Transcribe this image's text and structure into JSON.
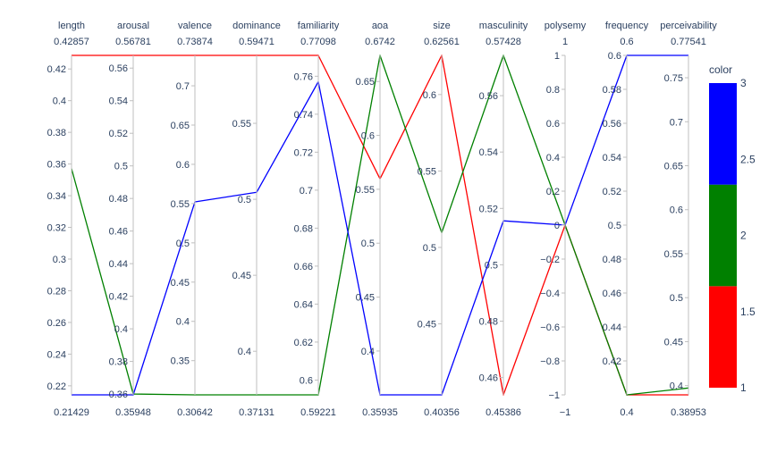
{
  "chart_data": {
    "type": "parallel_coordinates",
    "dimensions": [
      {
        "label": "length",
        "range": [
          0.21429,
          0.42857
        ],
        "range_labels": [
          "0.21429",
          "0.42857"
        ],
        "ticks": [
          0.22,
          0.24,
          0.26,
          0.28,
          0.3,
          0.32,
          0.34,
          0.36,
          0.38,
          0.4,
          0.42
        ],
        "tick_labels": [
          "0.22",
          "0.24",
          "0.26",
          "0.28",
          "0.3",
          "0.32",
          "0.34",
          "0.36",
          "0.38",
          "0.4",
          "0.42"
        ]
      },
      {
        "label": "arousal",
        "range": [
          0.35948,
          0.56781
        ],
        "range_labels": [
          "0.35948",
          "0.56781"
        ],
        "ticks": [
          0.36,
          0.38,
          0.4,
          0.42,
          0.44,
          0.46,
          0.48,
          0.5,
          0.52,
          0.54,
          0.56
        ],
        "tick_labels": [
          "0.36",
          "0.38",
          "0.4",
          "0.42",
          "0.44",
          "0.46",
          "0.48",
          "0.5",
          "0.52",
          "0.54",
          "0.56"
        ]
      },
      {
        "label": "valence",
        "range": [
          0.30642,
          0.73874
        ],
        "range_labels": [
          "0.30642",
          "0.73874"
        ],
        "ticks": [
          0.35,
          0.4,
          0.45,
          0.5,
          0.55,
          0.6,
          0.65,
          0.7
        ],
        "tick_labels": [
          "0.35",
          "0.4",
          "0.45",
          "0.5",
          "0.55",
          "0.6",
          "0.65",
          "0.7"
        ]
      },
      {
        "label": "dominance",
        "range": [
          0.37131,
          0.59471
        ],
        "range_labels": [
          "0.37131",
          "0.59471"
        ],
        "ticks": [
          0.4,
          0.45,
          0.5,
          0.55
        ],
        "tick_labels": [
          "0.4",
          "0.45",
          "0.5",
          "0.55"
        ]
      },
      {
        "label": "familiarity",
        "range": [
          0.59221,
          0.77098
        ],
        "range_labels": [
          "0.59221",
          "0.77098"
        ],
        "ticks": [
          0.6,
          0.62,
          0.64,
          0.66,
          0.68,
          0.7,
          0.72,
          0.74,
          0.76
        ],
        "tick_labels": [
          "0.6",
          "0.62",
          "0.64",
          "0.66",
          "0.68",
          "0.7",
          "0.72",
          "0.74",
          "0.76"
        ]
      },
      {
        "label": "aoa",
        "range": [
          0.35935,
          0.6742
        ],
        "range_labels": [
          "0.35935",
          "0.6742"
        ],
        "ticks": [
          0.4,
          0.45,
          0.5,
          0.55,
          0.6,
          0.65
        ],
        "tick_labels": [
          "0.4",
          "0.45",
          "0.5",
          "0.55",
          "0.6",
          "0.65"
        ]
      },
      {
        "label": "size",
        "range": [
          0.40356,
          0.62561
        ],
        "range_labels": [
          "0.40356",
          "0.62561"
        ],
        "ticks": [
          0.45,
          0.5,
          0.55,
          0.6
        ],
        "tick_labels": [
          "0.45",
          "0.5",
          "0.55",
          "0.6"
        ]
      },
      {
        "label": "masculinity",
        "range": [
          0.45386,
          0.57428
        ],
        "range_labels": [
          "0.45386",
          "0.57428"
        ],
        "ticks": [
          0.46,
          0.48,
          0.5,
          0.52,
          0.54,
          0.56
        ],
        "tick_labels": [
          "0.46",
          "0.48",
          "0.5",
          "0.52",
          "0.54",
          "0.56"
        ]
      },
      {
        "label": "polysemy",
        "range": [
          -1,
          1
        ],
        "range_labels": [
          "−1",
          "1"
        ],
        "ticks": [
          -1,
          -0.8,
          -0.6,
          -0.4,
          -0.2,
          0,
          0.2,
          0.4,
          0.6,
          0.8,
          1
        ],
        "tick_labels": [
          "−1",
          "−0.8",
          "−0.6",
          "−0.4",
          "−0.2",
          "0",
          "0.2",
          "0.4",
          "0.6",
          "0.8",
          "1"
        ]
      },
      {
        "label": "frequency",
        "range": [
          0.4,
          0.6
        ],
        "range_labels": [
          "0.4",
          "0.6"
        ],
        "ticks": [
          0.42,
          0.44,
          0.46,
          0.48,
          0.5,
          0.52,
          0.54,
          0.56,
          0.58,
          0.6
        ],
        "tick_labels": [
          "0.42",
          "0.44",
          "0.46",
          "0.48",
          "0.5",
          "0.52",
          "0.54",
          "0.56",
          "0.58",
          "0.6"
        ]
      },
      {
        "label": "perceivability",
        "range": [
          0.38953,
          0.77541
        ],
        "range_labels": [
          "0.38953",
          "0.77541"
        ],
        "ticks": [
          0.4,
          0.45,
          0.5,
          0.55,
          0.6,
          0.65,
          0.7,
          0.75
        ],
        "tick_labels": [
          "0.4",
          "0.45",
          "0.5",
          "0.55",
          "0.6",
          "0.65",
          "0.7",
          "0.75"
        ]
      }
    ],
    "lines": [
      {
        "color_value": 1,
        "color": "#ff0000",
        "values": [
          0.42857,
          0.56781,
          0.73874,
          0.59471,
          0.77098,
          0.5597,
          0.62561,
          0.45386,
          0,
          0.4,
          0.38953
        ]
      },
      {
        "color_value": 2,
        "color": "#008000",
        "values": [
          0.3571,
          0.36,
          0.30642,
          0.37131,
          0.59221,
          0.6742,
          0.5096,
          0.57428,
          0,
          0.4,
          0.39733
        ]
      },
      {
        "color_value": 3,
        "color": "#0000ff",
        "values": [
          0.21429,
          0.35948,
          0.5522,
          0.5046,
          0.7571,
          0.35935,
          0.40356,
          0.5156,
          0,
          0.6,
          0.77541
        ]
      }
    ],
    "colorbar": {
      "title": "color",
      "range": [
        1,
        3
      ],
      "ticks": [
        1,
        1.5,
        2,
        2.5,
        3
      ],
      "tick_labels": [
        "1",
        "1.5",
        "2",
        "2.5",
        "3"
      ],
      "colors": [
        "#ff0000",
        "#008000",
        "#0000ff"
      ]
    }
  }
}
